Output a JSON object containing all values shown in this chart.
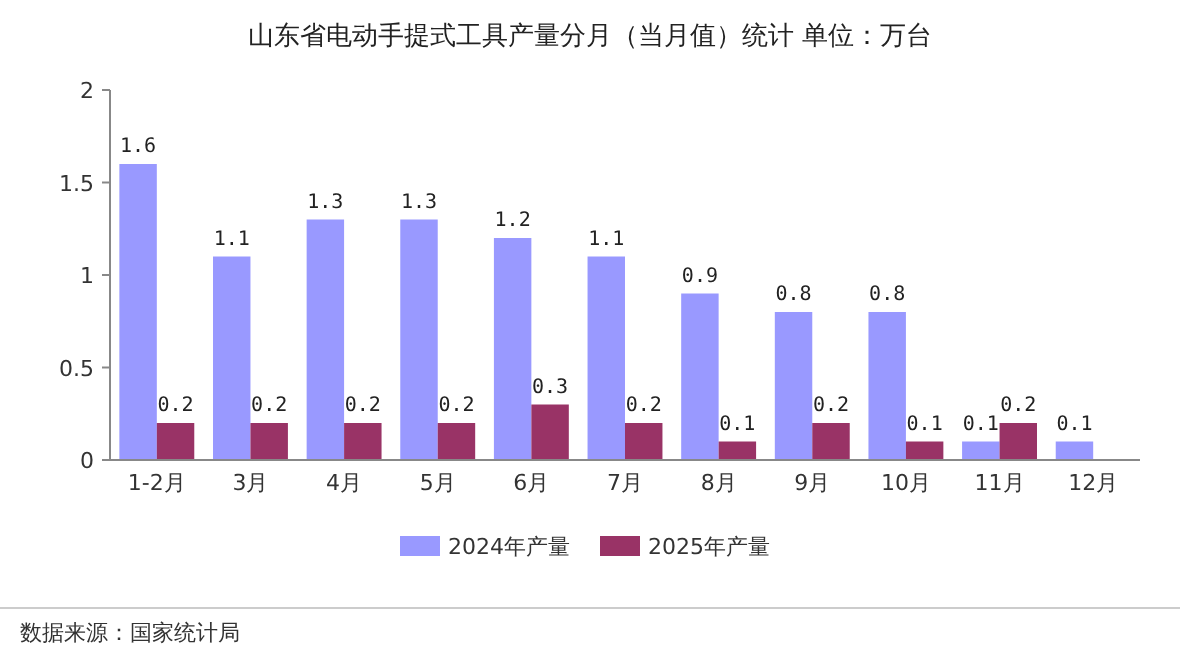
{
  "chart_data": {
    "type": "bar",
    "title": "山东省电动手提式工具产量分月（当月值）统计 单位：万台",
    "categories": [
      "1-2月",
      "3月",
      "4月",
      "5月",
      "6月",
      "7月",
      "8月",
      "9月",
      "10月",
      "11月",
      "12月"
    ],
    "series": [
      {
        "name": "2024年产量",
        "color": "#9999ff",
        "values": [
          1.6,
          1.1,
          1.3,
          1.3,
          1.2,
          1.1,
          0.9,
          0.8,
          0.8,
          0.1,
          0.1
        ]
      },
      {
        "name": "2025年产量",
        "color": "#993366",
        "values": [
          0.2,
          0.2,
          0.2,
          0.2,
          0.3,
          0.2,
          0.1,
          0.2,
          0.1,
          0.2,
          null
        ]
      }
    ],
    "ylim": [
      0,
      2
    ],
    "yticks": [
      0,
      0.5,
      1,
      1.5,
      2
    ],
    "data_labels": true,
    "legend": "bottom",
    "annotations": [
      "数据来源：国家统计局"
    ]
  }
}
